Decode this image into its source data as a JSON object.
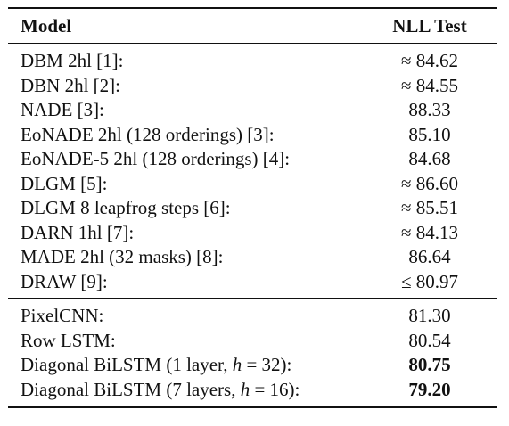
{
  "table": {
    "header": {
      "model": "Model",
      "nll": "NLL Test"
    },
    "section_1": [
      {
        "model": "DBM 2hl [1]:",
        "nll": "≈ 84.62",
        "bold": false
      },
      {
        "model": "DBN 2hl [2]:",
        "nll": "≈ 84.55",
        "bold": false
      },
      {
        "model": "NADE [3]:",
        "nll": "88.33",
        "bold": false
      },
      {
        "model": "EoNADE 2hl (128 orderings) [3]:",
        "nll": "85.10",
        "bold": false
      },
      {
        "model": "EoNADE-5 2hl (128 orderings) [4]:",
        "nll": "84.68",
        "bold": false
      },
      {
        "model": "DLGM [5]:",
        "nll": "≈ 86.60",
        "bold": false
      },
      {
        "model": "DLGM 8 leapfrog steps [6]:",
        "nll": "≈ 85.51",
        "bold": false
      },
      {
        "model": "DARN 1hl [7]:",
        "nll": "≈ 84.13",
        "bold": false
      },
      {
        "model": "MADE 2hl (32 masks) [8]:",
        "nll": "86.64",
        "bold": false
      },
      {
        "model": "DRAW [9]:",
        "nll": "≤ 80.97",
        "bold": false
      }
    ],
    "section_2": [
      {
        "model": "PixelCNN:",
        "nll": "81.30",
        "bold": false
      },
      {
        "model": "Row LSTM:",
        "nll": "80.54",
        "bold": false
      },
      {
        "model_prefix": "Diagonal BiLSTM (1 layer, ",
        "model_var": "h",
        "model_suffix": " = 32):",
        "nll": "80.75",
        "bold": true
      },
      {
        "model_prefix": "Diagonal BiLSTM (7 layers, ",
        "model_var": "h",
        "model_suffix": " = 16):",
        "nll": "79.20",
        "bold": true
      }
    ]
  }
}
